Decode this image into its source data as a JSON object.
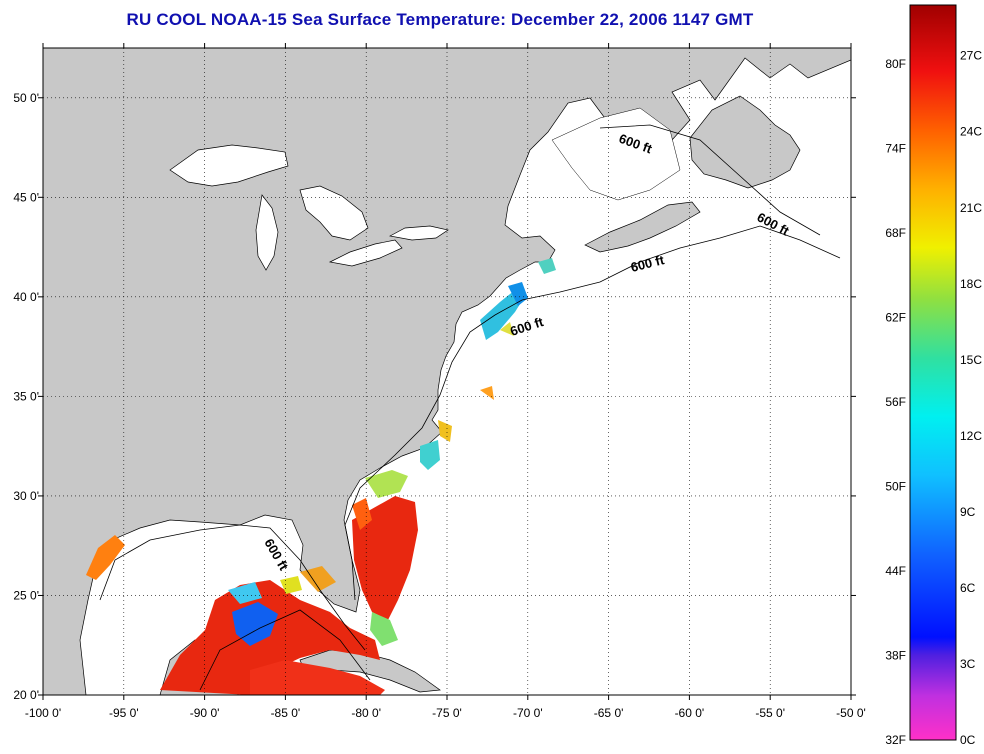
{
  "title": "RU COOL  NOAA-15  Sea Surface Temperature:  December 22, 2006 1147 GMT",
  "map": {
    "lon_range": [
      -100,
      -50
    ],
    "lat_range": [
      20,
      52.5
    ],
    "lon_ticks": [
      {
        "value": -100,
        "label": "-100 0'"
      },
      {
        "value": -95,
        "label": "-95 0'"
      },
      {
        "value": -90,
        "label": "-90 0'"
      },
      {
        "value": -85,
        "label": "-85 0'"
      },
      {
        "value": -80,
        "label": "-80 0'"
      },
      {
        "value": -75,
        "label": "-75 0'"
      },
      {
        "value": -70,
        "label": "-70 0'"
      },
      {
        "value": -65,
        "label": "-65 0'"
      },
      {
        "value": -60,
        "label": "-60 0'"
      },
      {
        "value": -55,
        "label": "-55 0'"
      },
      {
        "value": -50,
        "label": "-50 0'"
      }
    ],
    "lat_ticks": [
      {
        "value": 50,
        "label": "50 0'"
      },
      {
        "value": 45,
        "label": "45 0'"
      },
      {
        "value": 40,
        "label": "40 0'"
      },
      {
        "value": 35,
        "label": "35 0'"
      },
      {
        "value": 30,
        "label": "30 0'"
      },
      {
        "value": 25,
        "label": "25 0'"
      },
      {
        "value": 20,
        "label": "20 0'"
      }
    ],
    "grid": "dotted",
    "land_color": "#c8c8c8",
    "contour_label": "600 ft"
  },
  "colorbar": {
    "fahrenheit": [
      "80F",
      "74F",
      "68F",
      "62F",
      "56F",
      "50F",
      "44F",
      "38F",
      "32F"
    ],
    "celsius": [
      "27C",
      "24C",
      "21C",
      "18C",
      "15C",
      "12C",
      "9C",
      "6C",
      "3C",
      "0C"
    ]
  }
}
